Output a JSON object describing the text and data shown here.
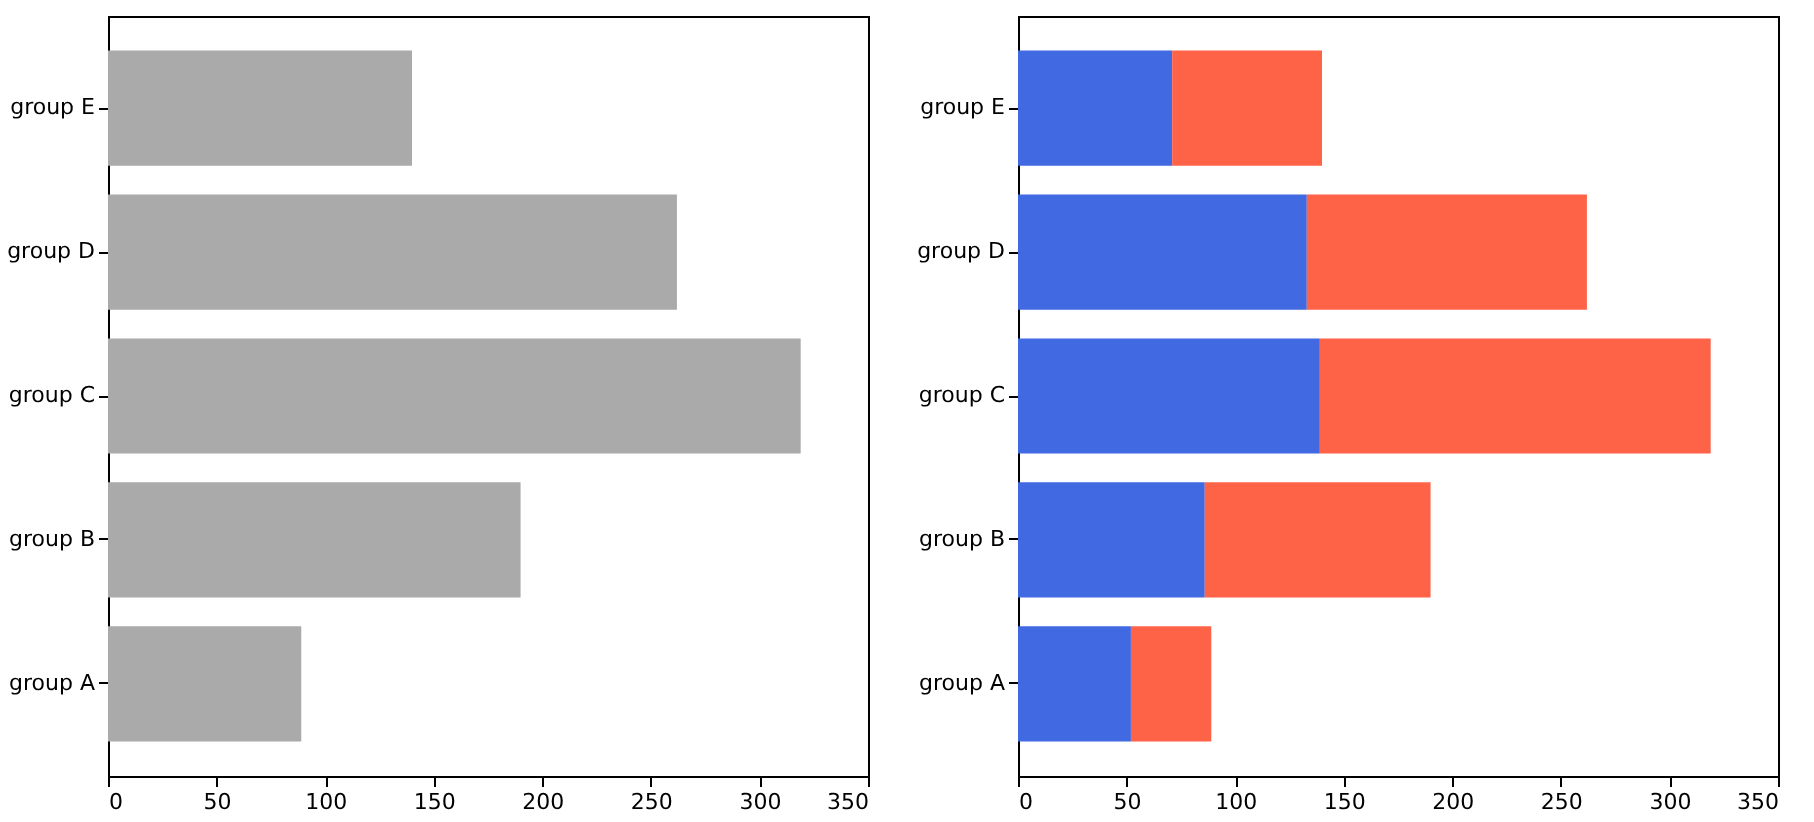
{
  "chart_data": [
    {
      "type": "bar",
      "orientation": "horizontal",
      "categories": [
        "group E",
        "group D",
        "group C",
        "group B",
        "group A"
      ],
      "series": [
        {
          "color": "#aaaaaa",
          "values": [
            140,
            262,
            319,
            190,
            89
          ]
        }
      ],
      "xlim": [
        0,
        350
      ],
      "xticks": [
        0,
        50,
        100,
        150,
        200,
        250,
        300,
        350
      ],
      "grid": false,
      "legend": false
    },
    {
      "type": "bar",
      "orientation": "horizontal",
      "stacked": true,
      "categories": [
        "group E",
        "group D",
        "group C",
        "group B",
        "group A"
      ],
      "series": [
        {
          "color": "#4169e1",
          "values": [
            71,
            133,
            139,
            86,
            52
          ]
        },
        {
          "color": "#ff6347",
          "values": [
            69,
            129,
            180,
            104,
            37
          ]
        }
      ],
      "xlim": [
        0,
        350
      ],
      "xticks": [
        0,
        50,
        100,
        150,
        200,
        250,
        300,
        350
      ],
      "grid": false,
      "legend": false
    }
  ]
}
